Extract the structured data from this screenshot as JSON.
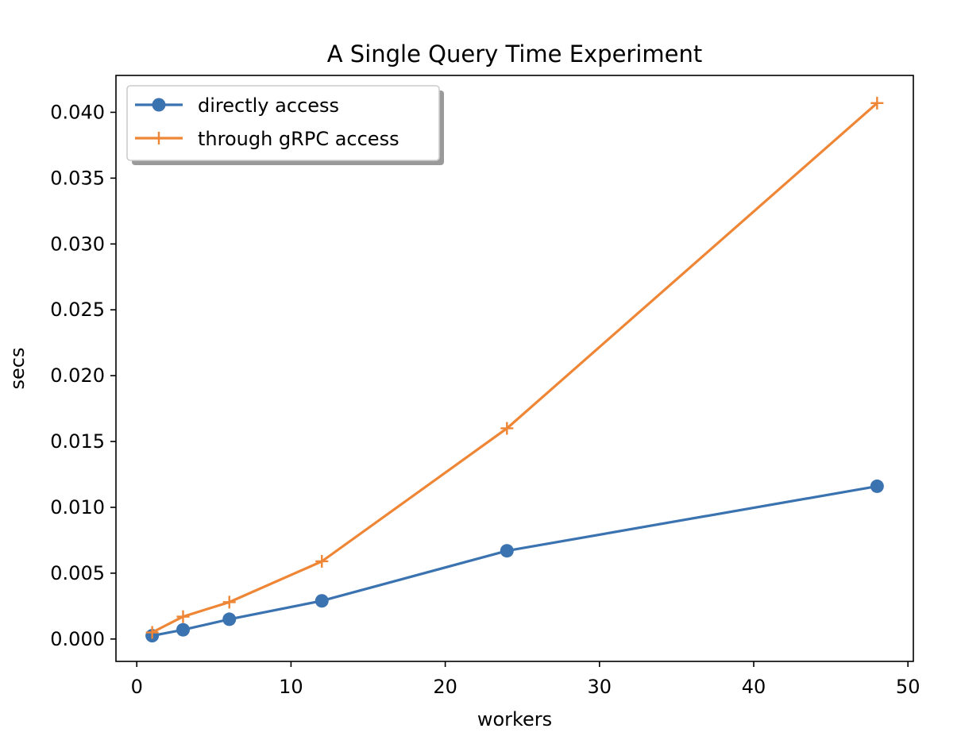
{
  "chart_data": {
    "type": "line",
    "title": "A Single Query Time Experiment",
    "xlabel": "workers",
    "ylabel": "secs",
    "xlim": [
      -1.35,
      50.35
    ],
    "ylim": [
      -0.0017,
      0.0428
    ],
    "xticks": [
      0,
      10,
      20,
      30,
      40,
      50
    ],
    "xtick_labels": [
      "0",
      "10",
      "20",
      "30",
      "40",
      "50"
    ],
    "yticks": [
      0.0,
      0.005,
      0.01,
      0.015,
      0.02,
      0.025,
      0.03,
      0.035,
      0.04
    ],
    "ytick_labels": [
      "0.000",
      "0.005",
      "0.010",
      "0.015",
      "0.020",
      "0.025",
      "0.030",
      "0.035",
      "0.040"
    ],
    "grid": false,
    "legend_position": "top-left",
    "x": [
      1,
      3,
      6,
      12,
      24,
      48
    ],
    "series": [
      {
        "name": "directly access",
        "values": [
          0.00025,
          0.0007,
          0.0015,
          0.0029,
          0.0067,
          0.0116
        ],
        "color": "#3a73b0",
        "marker": "circle"
      },
      {
        "name": "through gRPC access",
        "values": [
          0.0005,
          0.0017,
          0.0028,
          0.0059,
          0.016,
          0.0407
        ],
        "color": "#ee8636",
        "marker": "plus"
      }
    ]
  }
}
